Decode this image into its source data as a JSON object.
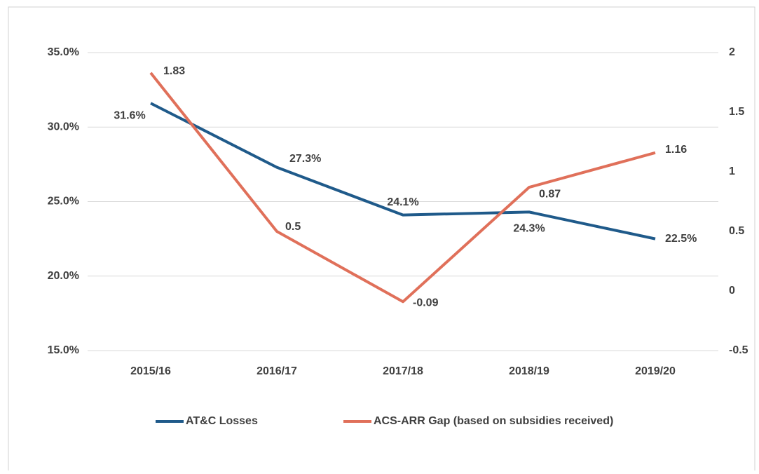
{
  "chart_data": {
    "type": "line",
    "categories": [
      "2015/16",
      "2016/17",
      "2017/18",
      "2018/19",
      "2019/20"
    ],
    "series": [
      {
        "name": "AT&C Losses",
        "color": "#1f5a8a",
        "values": [
          31.6,
          27.3,
          24.1,
          24.3,
          22.5
        ],
        "value_labels": [
          "31.6%",
          "27.3%",
          "24.1%",
          "24.3%",
          "22.5%"
        ]
      },
      {
        "name": "ACS-ARR Gap (based on subsidies received)",
        "color": "#e0705a",
        "axis": "y2",
        "values": [
          1.83,
          0.5,
          -0.09,
          0.87,
          1.16
        ]
      }
    ],
    "ylim": [
      15,
      35
    ],
    "yticks": [
      {
        "value": 15,
        "label": "15.0%"
      },
      {
        "value": 20,
        "label": "20.0%"
      },
      {
        "value": 25,
        "label": "25.0%"
      },
      {
        "value": 30,
        "label": "30.0%"
      },
      {
        "value": 35,
        "label": "35.0%"
      }
    ],
    "y2lim": [
      -0.5,
      2
    ],
    "y2ticks": [
      -0.5,
      0,
      0.5,
      1,
      1.5,
      2
    ],
    "grid": true,
    "legend": "bottom"
  }
}
